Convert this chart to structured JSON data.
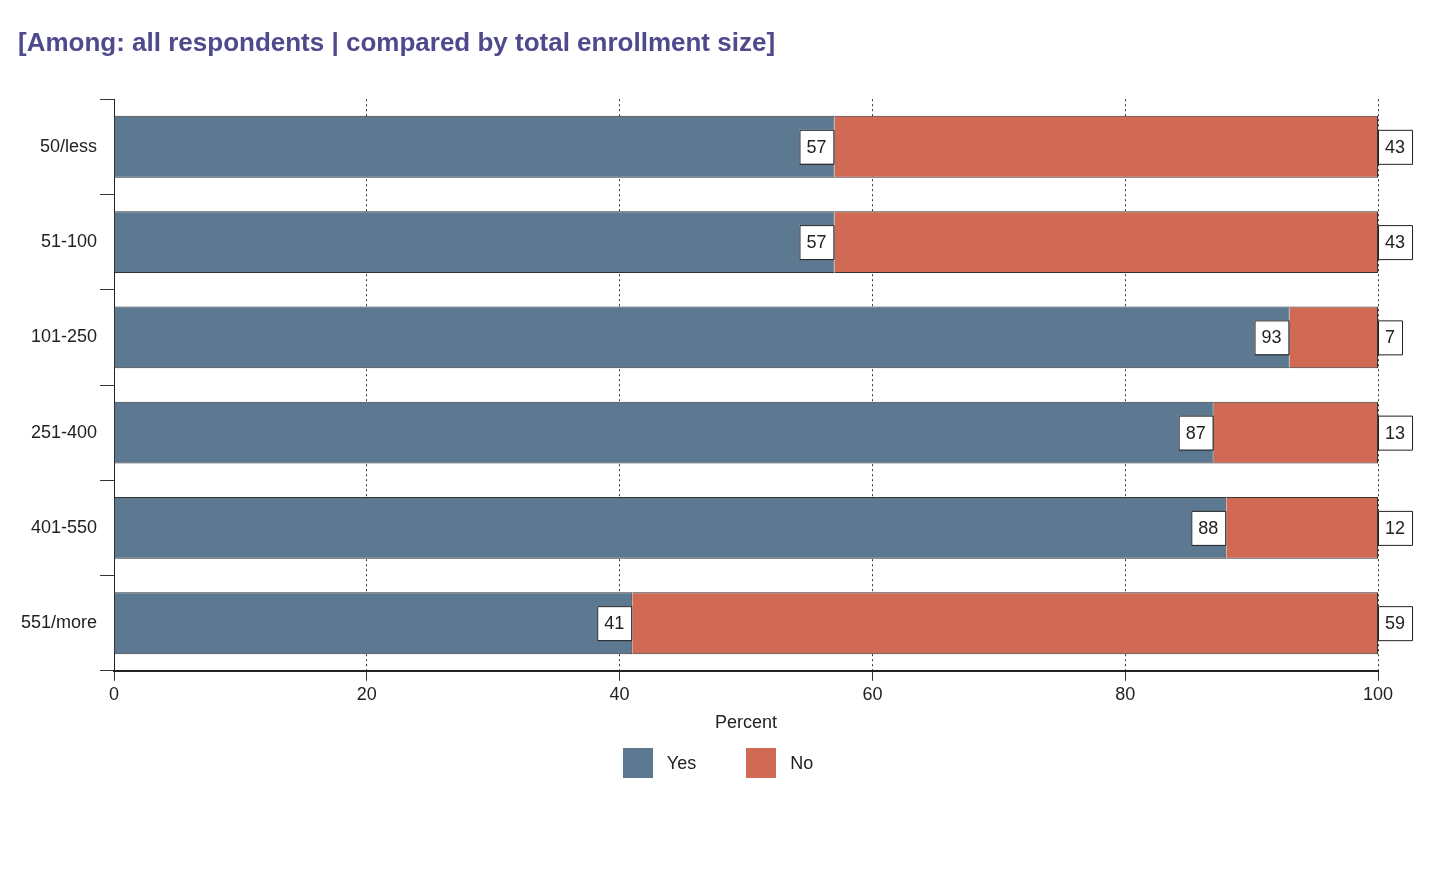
{
  "chart_data": {
    "type": "bar",
    "orientation": "horizontal",
    "stacked": true,
    "title": "[Among: all respondents | compared by total enrollment size]",
    "xlabel": "Percent",
    "categories": [
      "50/less",
      "51-100",
      "101-250",
      "251-400",
      "401-550",
      "551/more"
    ],
    "series": [
      {
        "name": "Yes",
        "color": "#5d7891",
        "values": [
          57,
          57,
          93,
          87,
          88,
          41
        ]
      },
      {
        "name": "No",
        "color": "#d06a54",
        "values": [
          43,
          43,
          7,
          13,
          12,
          59
        ]
      }
    ],
    "xlim": [
      0,
      100
    ],
    "xticks": [
      0,
      20,
      40,
      60,
      80,
      100
    ],
    "grid": "x",
    "legend": "bottom",
    "data_labels": true
  }
}
